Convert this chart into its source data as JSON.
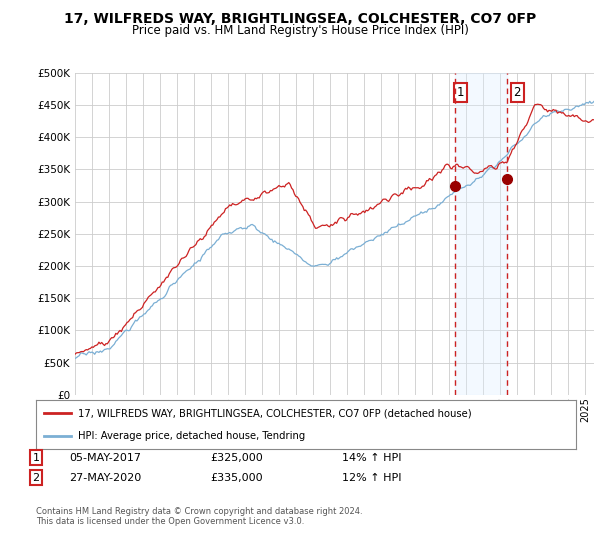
{
  "title": "17, WILFREDS WAY, BRIGHTLINGSEA, COLCHESTER, CO7 0FP",
  "subtitle": "Price paid vs. HM Land Registry's House Price Index (HPI)",
  "legend_line1": "17, WILFREDS WAY, BRIGHTLINGSEA, COLCHESTER, CO7 0FP (detached house)",
  "legend_line2": "HPI: Average price, detached house, Tendring",
  "annotation1_label": "1",
  "annotation1_date": "05-MAY-2017",
  "annotation1_price": "£325,000",
  "annotation1_hpi": "14% ↑ HPI",
  "annotation2_label": "2",
  "annotation2_date": "27-MAY-2020",
  "annotation2_price": "£335,000",
  "annotation2_hpi": "12% ↑ HPI",
  "footer": "Contains HM Land Registry data © Crown copyright and database right 2024.\nThis data is licensed under the Open Government Licence v3.0.",
  "hpi_color": "#7bafd4",
  "price_color": "#cc2222",
  "annotation_color": "#cc2222",
  "shaded_color": "#ddeeff",
  "background_color": "#ffffff",
  "grid_color": "#cccccc",
  "ylim": [
    0,
    500000
  ],
  "yticks": [
    0,
    50000,
    100000,
    150000,
    200000,
    250000,
    300000,
    350000,
    400000,
    450000,
    500000
  ],
  "sale1_year": 2017.35,
  "sale1_value": 325000,
  "sale2_year": 2020.37,
  "sale2_value": 335000,
  "vline1_year": 2017.35,
  "vline2_year": 2020.37
}
